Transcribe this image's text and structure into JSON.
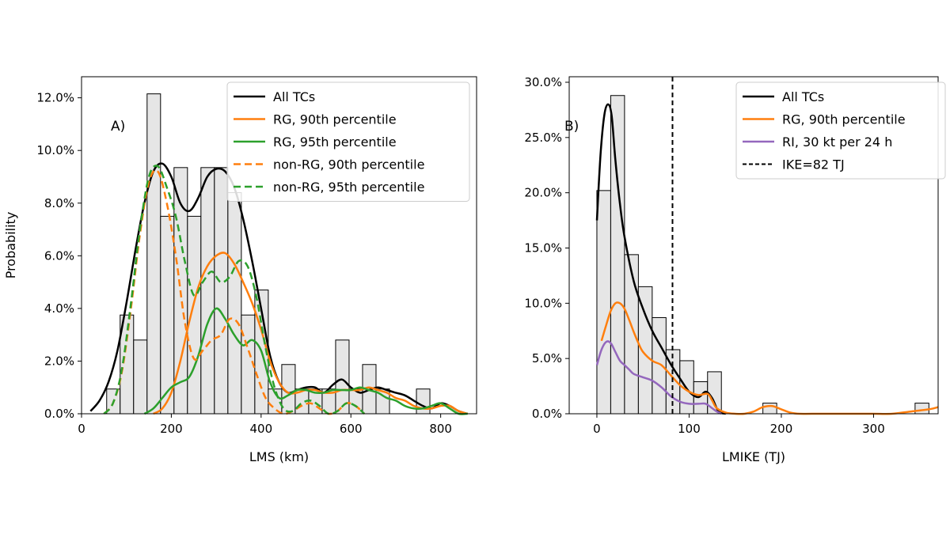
{
  "chart_data": [
    {
      "type": "bar",
      "panel_label": "A)",
      "xlabel": "LMS (km)",
      "ylabel": "Probability",
      "xlim": [
        0,
        880
      ],
      "ylim": [
        0,
        0.128
      ],
      "xticks": [
        0,
        200,
        400,
        600,
        800
      ],
      "yticks": [
        0,
        0.02,
        0.04,
        0.06,
        0.08,
        0.1,
        0.12
      ],
      "ytick_labels": [
        "0.0%",
        "2.0%",
        "4.0%",
        "6.0%",
        "8.0%",
        "10.0%",
        "12.0%"
      ],
      "histogram": {
        "bin_edges": [
          56,
          86,
          116,
          146,
          176,
          206,
          236,
          266,
          296,
          326,
          356,
          386,
          416,
          446,
          476,
          506,
          536,
          566,
          596,
          626,
          656,
          686,
          716,
          746,
          776,
          806
        ],
        "values": [
          0.0094,
          0.0375,
          0.028,
          0.1215,
          0.075,
          0.0935,
          0.075,
          0.0935,
          0.0935,
          0.084,
          0.0375,
          0.047,
          0.0094,
          0.0187,
          0.0094,
          0.0094,
          0.0094,
          0.028,
          0.0094,
          0.0187,
          0.0094,
          0,
          0,
          0.0094,
          0
        ]
      },
      "legend_position": "upper right",
      "series": [
        {
          "name": "All TCs",
          "color": "#000000",
          "dashed": false,
          "x": [
            20,
            40,
            60,
            80,
            100,
            120,
            140,
            160,
            180,
            200,
            220,
            240,
            260,
            280,
            300,
            320,
            340,
            360,
            380,
            400,
            420,
            440,
            460,
            480,
            500,
            520,
            540,
            560,
            580,
            600,
            620,
            640,
            660,
            680,
            700,
            720,
            740,
            760,
            780,
            800,
            820,
            840,
            860
          ],
          "y": [
            0.001,
            0.005,
            0.012,
            0.024,
            0.042,
            0.062,
            0.08,
            0.092,
            0.095,
            0.09,
            0.08,
            0.077,
            0.082,
            0.09,
            0.093,
            0.092,
            0.086,
            0.074,
            0.058,
            0.04,
            0.022,
            0.012,
            0.008,
            0.009,
            0.01,
            0.01,
            0.008,
            0.011,
            0.013,
            0.01,
            0.008,
            0.009,
            0.01,
            0.009,
            0.008,
            0.007,
            0.005,
            0.003,
            0.002,
            0.004,
            0.003,
            0.001,
            0.0
          ]
        },
        {
          "name": "RG, 90th percentile",
          "color": "#ff7f0e",
          "dashed": false,
          "x": [
            160,
            180,
            200,
            220,
            240,
            260,
            280,
            300,
            320,
            340,
            360,
            380,
            400,
            420,
            440,
            460,
            480,
            500,
            520,
            540,
            560,
            580,
            600,
            620,
            640,
            660,
            680,
            700,
            720,
            740,
            760,
            780,
            800,
            820,
            840,
            860
          ],
          "y": [
            0.0,
            0.002,
            0.008,
            0.02,
            0.035,
            0.048,
            0.056,
            0.06,
            0.061,
            0.057,
            0.05,
            0.042,
            0.032,
            0.02,
            0.012,
            0.008,
            0.008,
            0.009,
            0.009,
            0.008,
            0.008,
            0.009,
            0.009,
            0.009,
            0.01,
            0.009,
            0.008,
            0.006,
            0.005,
            0.003,
            0.002,
            0.002,
            0.003,
            0.003,
            0.001,
            0.0
          ]
        },
        {
          "name": "RG, 95th percentile",
          "color": "#2ca02c",
          "dashed": false,
          "x": [
            140,
            160,
            180,
            200,
            220,
            240,
            260,
            280,
            300,
            320,
            340,
            360,
            380,
            400,
            420,
            440,
            460,
            480,
            500,
            520,
            540,
            560,
            580,
            600,
            620,
            640,
            660,
            680,
            700,
            720,
            740,
            760,
            780,
            800,
            820,
            840,
            860
          ],
          "y": [
            0.0,
            0.002,
            0.006,
            0.01,
            0.012,
            0.014,
            0.022,
            0.034,
            0.04,
            0.036,
            0.03,
            0.026,
            0.028,
            0.024,
            0.012,
            0.006,
            0.007,
            0.009,
            0.009,
            0.008,
            0.008,
            0.009,
            0.009,
            0.009,
            0.01,
            0.009,
            0.008,
            0.006,
            0.005,
            0.003,
            0.002,
            0.002,
            0.003,
            0.004,
            0.002,
            0.0,
            0.0
          ]
        },
        {
          "name": "non-RG, 90th percentile",
          "color": "#ff7f0e",
          "dashed": true,
          "x": [
            50,
            70,
            90,
            110,
            130,
            150,
            170,
            190,
            210,
            230,
            250,
            270,
            290,
            310,
            330,
            350,
            370,
            390,
            410,
            430,
            450,
            470,
            490,
            510,
            530,
            550,
            570,
            590,
            610,
            630
          ],
          "y": [
            0.0,
            0.004,
            0.016,
            0.04,
            0.068,
            0.088,
            0.092,
            0.08,
            0.06,
            0.035,
            0.021,
            0.024,
            0.028,
            0.03,
            0.036,
            0.034,
            0.025,
            0.015,
            0.006,
            0.002,
            0.0,
            0.001,
            0.003,
            0.004,
            0.002,
            0.0,
            0.001,
            0.004,
            0.003,
            0.0
          ]
        },
        {
          "name": "non-RG, 95th percentile",
          "color": "#2ca02c",
          "dashed": true,
          "x": [
            50,
            70,
            90,
            110,
            130,
            150,
            170,
            190,
            210,
            230,
            250,
            270,
            290,
            310,
            330,
            350,
            370,
            390,
            410,
            430,
            450,
            470,
            490,
            510,
            530,
            550,
            570,
            590,
            610,
            630
          ],
          "y": [
            0.0,
            0.004,
            0.017,
            0.042,
            0.07,
            0.09,
            0.094,
            0.086,
            0.075,
            0.058,
            0.045,
            0.05,
            0.054,
            0.05,
            0.052,
            0.058,
            0.056,
            0.044,
            0.025,
            0.01,
            0.002,
            0.001,
            0.004,
            0.005,
            0.003,
            0.0,
            0.001,
            0.004,
            0.003,
            0.0
          ]
        }
      ]
    },
    {
      "type": "bar",
      "panel_label": "B)",
      "xlabel": "LMIKE (TJ)",
      "ylabel": "",
      "xlim": [
        -30,
        370
      ],
      "ylim": [
        0,
        0.305
      ],
      "xticks": [
        0,
        100,
        200,
        300
      ],
      "yticks": [
        0,
        0.05,
        0.1,
        0.15,
        0.2,
        0.25,
        0.3
      ],
      "ytick_labels": [
        "0.0%",
        "5.0%",
        "10.0%",
        "15.0%",
        "20.0%",
        "25.0%",
        "30.0%"
      ],
      "histogram": {
        "bin_edges": [
          0,
          15,
          30,
          45,
          60,
          75,
          90,
          105,
          120,
          135,
          150,
          165,
          180,
          195,
          210,
          225,
          240,
          255,
          270,
          285,
          300,
          315,
          330,
          345,
          360
        ],
        "values": [
          0.202,
          0.288,
          0.144,
          0.115,
          0.087,
          0.058,
          0.048,
          0.029,
          0.038,
          0,
          0,
          0,
          0.0096,
          0,
          0,
          0,
          0,
          0,
          0,
          0,
          0,
          0,
          0,
          0.0096
        ]
      },
      "legend_position": "upper right",
      "vline": {
        "x": 82,
        "label": "IKE=82 TJ",
        "color": "#000000",
        "dashed": true
      },
      "series": [
        {
          "name": "All TCs",
          "color": "#000000",
          "dashed": false,
          "x": [
            0,
            4,
            8,
            12,
            16,
            20,
            25,
            30,
            40,
            50,
            60,
            70,
            80,
            90,
            100,
            110,
            118,
            125,
            132,
            140
          ],
          "y": [
            0.175,
            0.235,
            0.27,
            0.28,
            0.27,
            0.23,
            0.19,
            0.16,
            0.12,
            0.095,
            0.075,
            0.06,
            0.045,
            0.032,
            0.02,
            0.015,
            0.02,
            0.014,
            0.002,
            0.0
          ]
        },
        {
          "name": "RG, 90th percentile",
          "color": "#ff7f0e",
          "dashed": false,
          "x": [
            5,
            10,
            15,
            20,
            25,
            30,
            35,
            40,
            45,
            50,
            60,
            70,
            80,
            90,
            100,
            110,
            120,
            125,
            130,
            140,
            150,
            160,
            170,
            180,
            190,
            200,
            210,
            220,
            240,
            260,
            280,
            300,
            320,
            340,
            360,
            370
          ],
          "y": [
            0.066,
            0.08,
            0.093,
            0.1,
            0.1,
            0.095,
            0.085,
            0.074,
            0.064,
            0.056,
            0.048,
            0.044,
            0.035,
            0.026,
            0.02,
            0.017,
            0.018,
            0.012,
            0.005,
            0.001,
            0.0,
            0.0,
            0.002,
            0.006,
            0.007,
            0.004,
            0.001,
            0.0,
            0.0,
            0.0,
            0.0,
            0.0,
            0.0,
            0.002,
            0.004,
            0.006
          ]
        },
        {
          "name": "RI, 30 kt per 24 h",
          "color": "#9467bd",
          "dashed": false,
          "x": [
            0,
            5,
            10,
            15,
            20,
            25,
            30,
            35,
            40,
            50,
            60,
            70,
            80,
            90,
            100,
            110,
            118,
            125,
            130,
            135
          ],
          "y": [
            0.044,
            0.058,
            0.065,
            0.064,
            0.056,
            0.048,
            0.044,
            0.04,
            0.036,
            0.033,
            0.03,
            0.024,
            0.016,
            0.011,
            0.009,
            0.009,
            0.009,
            0.005,
            0.002,
            0.0
          ]
        }
      ]
    }
  ]
}
